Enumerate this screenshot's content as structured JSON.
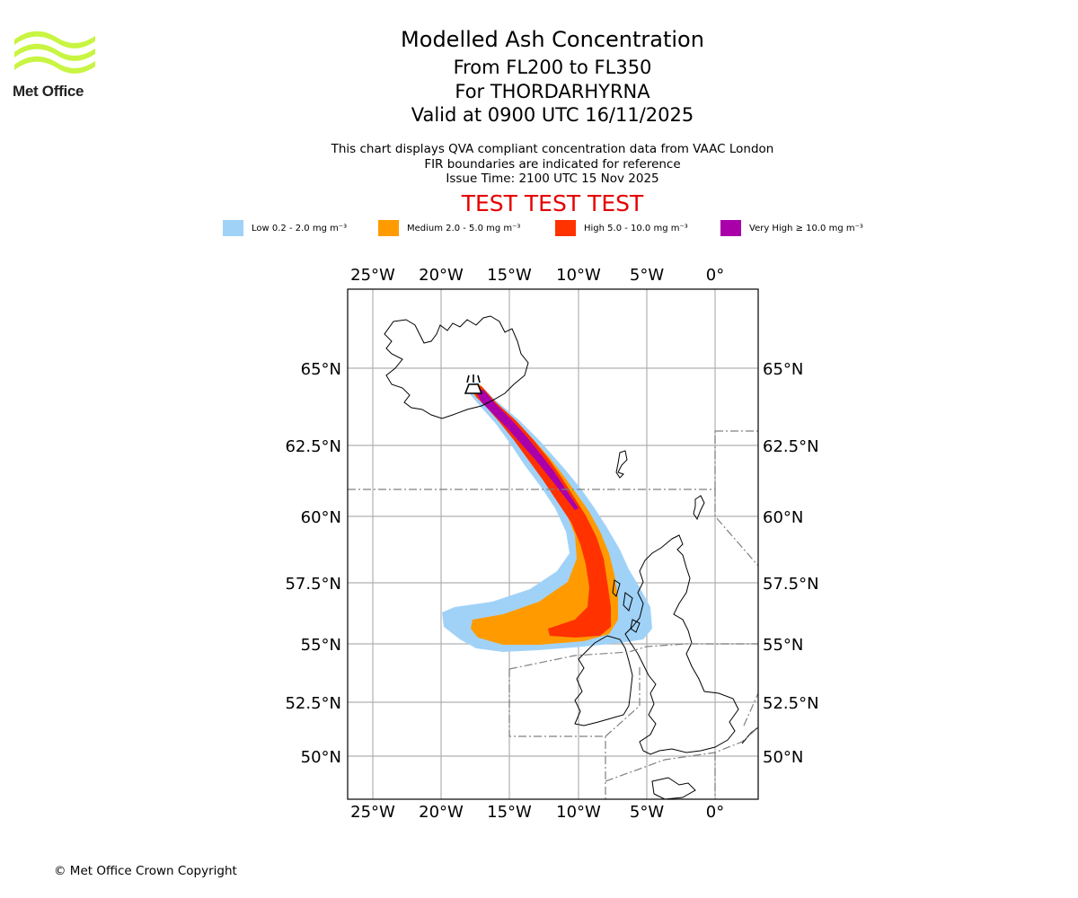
{
  "logo": {
    "text": "Met Office",
    "color": "#c8f542"
  },
  "title": {
    "line1": "Modelled Ash Concentration",
    "line2": "From FL200 to FL350",
    "line3": "For THORDARHYRNA",
    "line4": "Valid at 0900 UTC 16/11/2025"
  },
  "subtitle": {
    "line1": "This chart displays QVA compliant concentration data from VAAC London",
    "line2": "FIR boundaries are indicated for reference",
    "line3": "Issue Time: 2100 UTC 15 Nov 2025"
  },
  "warning": "TEST TEST TEST",
  "legend": [
    {
      "label": "Low 0.2 - 2.0 mg m⁻³",
      "color": "#a0d2f8"
    },
    {
      "label": "Medium 2.0 - 5.0 mg m⁻³",
      "color": "#ff9b00"
    },
    {
      "label": "High 5.0 - 10.0 mg m⁻³",
      "color": "#ff3200"
    },
    {
      "label": "Very High ≥ 10.0 mg m⁻³",
      "color": "#aa00aa"
    }
  ],
  "map": {
    "lon_ticks": [
      "25°W",
      "20°W",
      "15°W",
      "10°W",
      "5°W",
      "0°"
    ],
    "lat_ticks": [
      "65°N",
      "62.5°N",
      "60°N",
      "57.5°N",
      "55°N",
      "52.5°N",
      "50°N"
    ],
    "volcano_lon": -17.6,
    "volcano_lat": 64.3
  },
  "copyright": "© Met Office Crown Copyright"
}
